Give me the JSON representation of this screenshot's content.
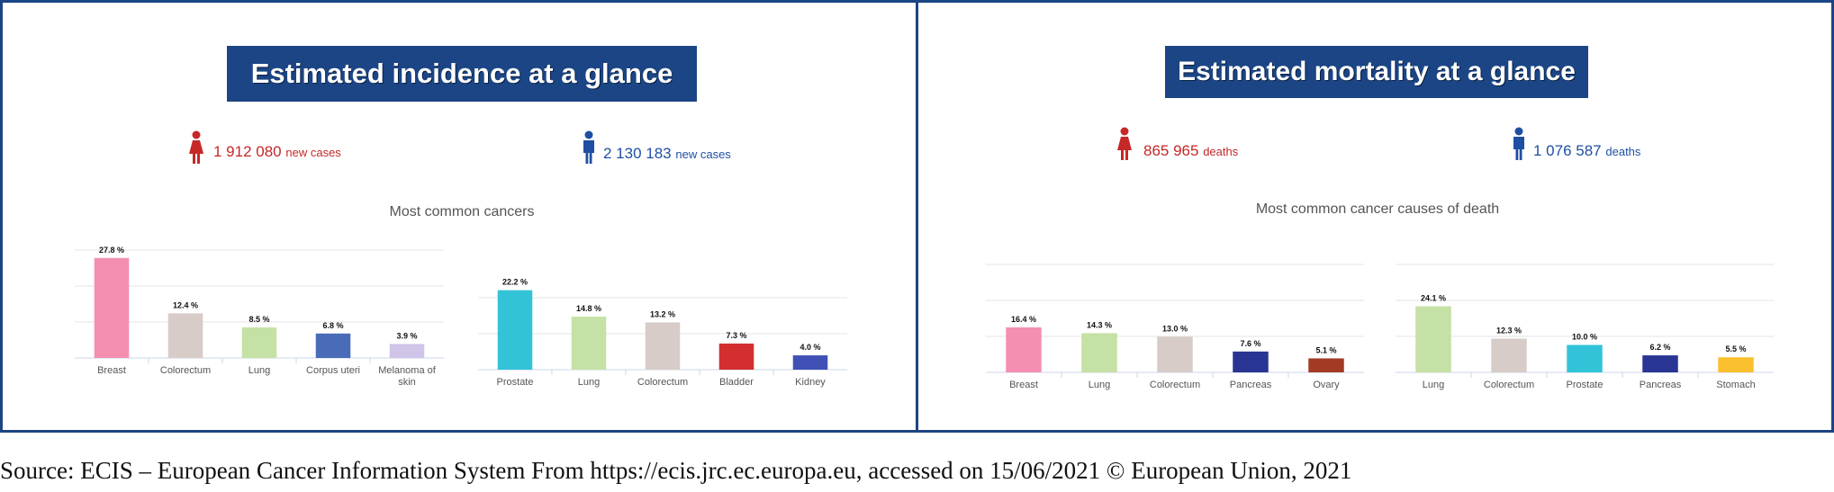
{
  "panels": {
    "incidence": {
      "title": "Estimated incidence at a glance",
      "female": {
        "value": "1 912 080",
        "unit": "new cases"
      },
      "male": {
        "value": "2 130 183",
        "unit": "new cases"
      },
      "subtitle": "Most common cancers"
    },
    "mortality": {
      "title": "Estimated mortality at a glance",
      "female": {
        "value": "865 965",
        "unit": "deaths"
      },
      "male": {
        "value": "1 076 587",
        "unit": "deaths"
      },
      "subtitle": "Most common cancer causes of death"
    }
  },
  "colors": {
    "female": "#c62828",
    "male": "#1f4fa3",
    "frame": "#1b4585"
  },
  "icons": {
    "female": "female-person-icon",
    "male": "male-person-icon"
  },
  "source": "Source: ECIS – European Cancer Information System From https://ecis.jrc.ec.europa.eu, accessed on 15/06/2021 © European Union, 2021",
  "chart_data": [
    {
      "type": "bar",
      "categories": [
        "Breast",
        "Colorectum",
        "Lung",
        "Corpus uteri",
        "Melanoma of skin"
      ],
      "values": [
        27.8,
        12.4,
        8.5,
        6.8,
        3.9
      ],
      "labels": [
        "27.8 %",
        "12.4 %",
        "8.5 %",
        "6.8 %",
        "3.9 %"
      ],
      "colors": [
        "#f48fb1",
        "#d7ccc8",
        "#c5e1a5",
        "#4a6bb8",
        "#d1c4e9"
      ],
      "ylim": [
        0,
        30
      ],
      "grid": true
    },
    {
      "type": "bar",
      "categories": [
        "Prostate",
        "Lung",
        "Colorectum",
        "Bladder",
        "Kidney"
      ],
      "values": [
        22.2,
        14.8,
        13.2,
        7.3,
        4.0
      ],
      "labels": [
        "22.2 %",
        "14.8 %",
        "13.2 %",
        "7.3 %",
        "4.0 %"
      ],
      "colors": [
        "#33c3d9",
        "#c5e1a5",
        "#d7ccc8",
        "#d32f2f",
        "#3f51b5"
      ],
      "ylim": [
        0,
        30
      ],
      "grid": true
    },
    {
      "type": "bar",
      "categories": [
        "Breast",
        "Lung",
        "Colorectum",
        "Pancreas",
        "Ovary"
      ],
      "values": [
        16.4,
        14.3,
        13.0,
        7.6,
        5.1
      ],
      "labels": [
        "16.4 %",
        "14.3 %",
        "13.0 %",
        "7.6 %",
        "5.1 %"
      ],
      "colors": [
        "#f48fb1",
        "#c5e1a5",
        "#d7ccc8",
        "#283593",
        "#a33a24"
      ],
      "ylim": [
        0,
        30
      ],
      "grid": true
    },
    {
      "type": "bar",
      "categories": [
        "Lung",
        "Colorectum",
        "Prostate",
        "Pancreas",
        "Stomach"
      ],
      "values": [
        24.1,
        12.3,
        10.0,
        6.2,
        5.5
      ],
      "labels": [
        "24.1 %",
        "12.3 %",
        "10.0 %",
        "6.2 %",
        "5.5 %"
      ],
      "colors": [
        "#c5e1a5",
        "#d7ccc8",
        "#33c3d9",
        "#283593",
        "#fbc02d"
      ],
      "ylim": [
        0,
        30
      ],
      "grid": true
    }
  ]
}
